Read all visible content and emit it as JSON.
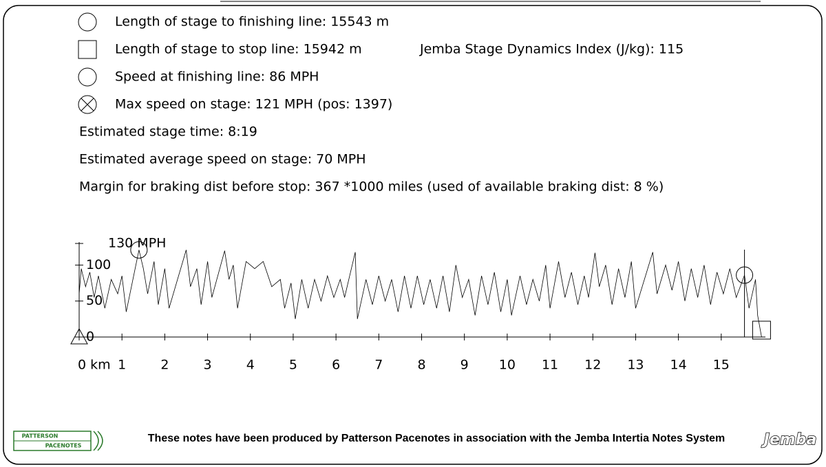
{
  "info": {
    "finish_length": "Length of stage to finishing line: 15543 m",
    "stop_length": "Length of stage to stop line: 15942 m",
    "dynamics_index": "Jemba Stage Dynamics Index (J/kg): 115",
    "finish_speed": "Speed at finishing line: 86 MPH",
    "max_speed": "Max speed on stage: 121 MPH (pos: 1397)",
    "stage_time": "Estimated stage time: 8:19",
    "average_speed": "Estimated average speed on stage: 70 MPH",
    "braking_margin": "Margin for braking dist before stop: 367 *1000 miles (used of available braking dist: 8 %)"
  },
  "chart_data": {
    "type": "line",
    "x": [
      0.0,
      0.05,
      0.15,
      0.25,
      0.35,
      0.45,
      0.6,
      0.75,
      0.9,
      1.0,
      1.1,
      1.397,
      1.5,
      1.6,
      1.75,
      1.85,
      2.0,
      2.1,
      2.5,
      2.6,
      2.75,
      2.85,
      3.0,
      3.1,
      3.4,
      3.5,
      3.6,
      3.7,
      3.9,
      4.1,
      4.3,
      4.5,
      4.7,
      4.8,
      4.95,
      5.05,
      5.2,
      5.35,
      5.5,
      5.65,
      5.8,
      5.95,
      6.1,
      6.2,
      6.45,
      6.5,
      6.7,
      6.85,
      7.0,
      7.15,
      7.3,
      7.45,
      7.6,
      7.75,
      7.9,
      8.05,
      8.2,
      8.35,
      8.5,
      8.65,
      8.8,
      8.95,
      9.1,
      9.25,
      9.4,
      9.55,
      9.7,
      9.85,
      10.0,
      10.1,
      10.3,
      10.45,
      10.6,
      10.75,
      10.9,
      11.0,
      11.2,
      11.35,
      11.5,
      11.65,
      11.8,
      11.9,
      12.05,
      12.15,
      12.3,
      12.45,
      12.6,
      12.75,
      12.9,
      13.0,
      13.4,
      13.5,
      13.7,
      13.85,
      14.0,
      14.15,
      14.3,
      14.45,
      14.6,
      14.75,
      14.9,
      15.05,
      15.2,
      15.35,
      15.543,
      15.65,
      15.8,
      15.85,
      15.942
    ],
    "values": [
      60,
      95,
      70,
      90,
      55,
      85,
      40,
      80,
      60,
      85,
      35,
      121,
      95,
      60,
      105,
      45,
      95,
      40,
      121,
      70,
      95,
      45,
      105,
      55,
      120,
      80,
      100,
      40,
      105,
      95,
      105,
      70,
      80,
      40,
      75,
      25,
      80,
      40,
      80,
      50,
      85,
      55,
      80,
      55,
      118,
      25,
      80,
      45,
      85,
      50,
      80,
      35,
      85,
      40,
      85,
      45,
      80,
      40,
      85,
      35,
      100,
      55,
      80,
      30,
      85,
      45,
      90,
      35,
      80,
      30,
      85,
      45,
      80,
      50,
      100,
      40,
      105,
      55,
      90,
      45,
      85,
      55,
      117,
      70,
      100,
      45,
      95,
      55,
      105,
      40,
      118,
      60,
      100,
      65,
      105,
      50,
      95,
      55,
      100,
      45,
      90,
      60,
      95,
      55,
      86,
      40,
      80,
      30,
      0
    ],
    "color": "#000000",
    "xlim": [
      0,
      16
    ],
    "ylim": [
      0,
      130
    ],
    "xticks": [
      {
        "value": 0,
        "label": "0 km"
      },
      1,
      2,
      3,
      4,
      5,
      6,
      7,
      8,
      9,
      10,
      11,
      12,
      13,
      14,
      15
    ],
    "yticks": [
      0,
      50,
      100,
      {
        "value": 130,
        "label": "130 MPH"
      }
    ]
  },
  "footer": {
    "logo_top": "PATTERSON",
    "logo_bottom": "PACENOTES",
    "text": "These notes have been produced by Patterson Pacenotes in association with the Jemba Intertia Notes System",
    "brand": "Jemba"
  }
}
